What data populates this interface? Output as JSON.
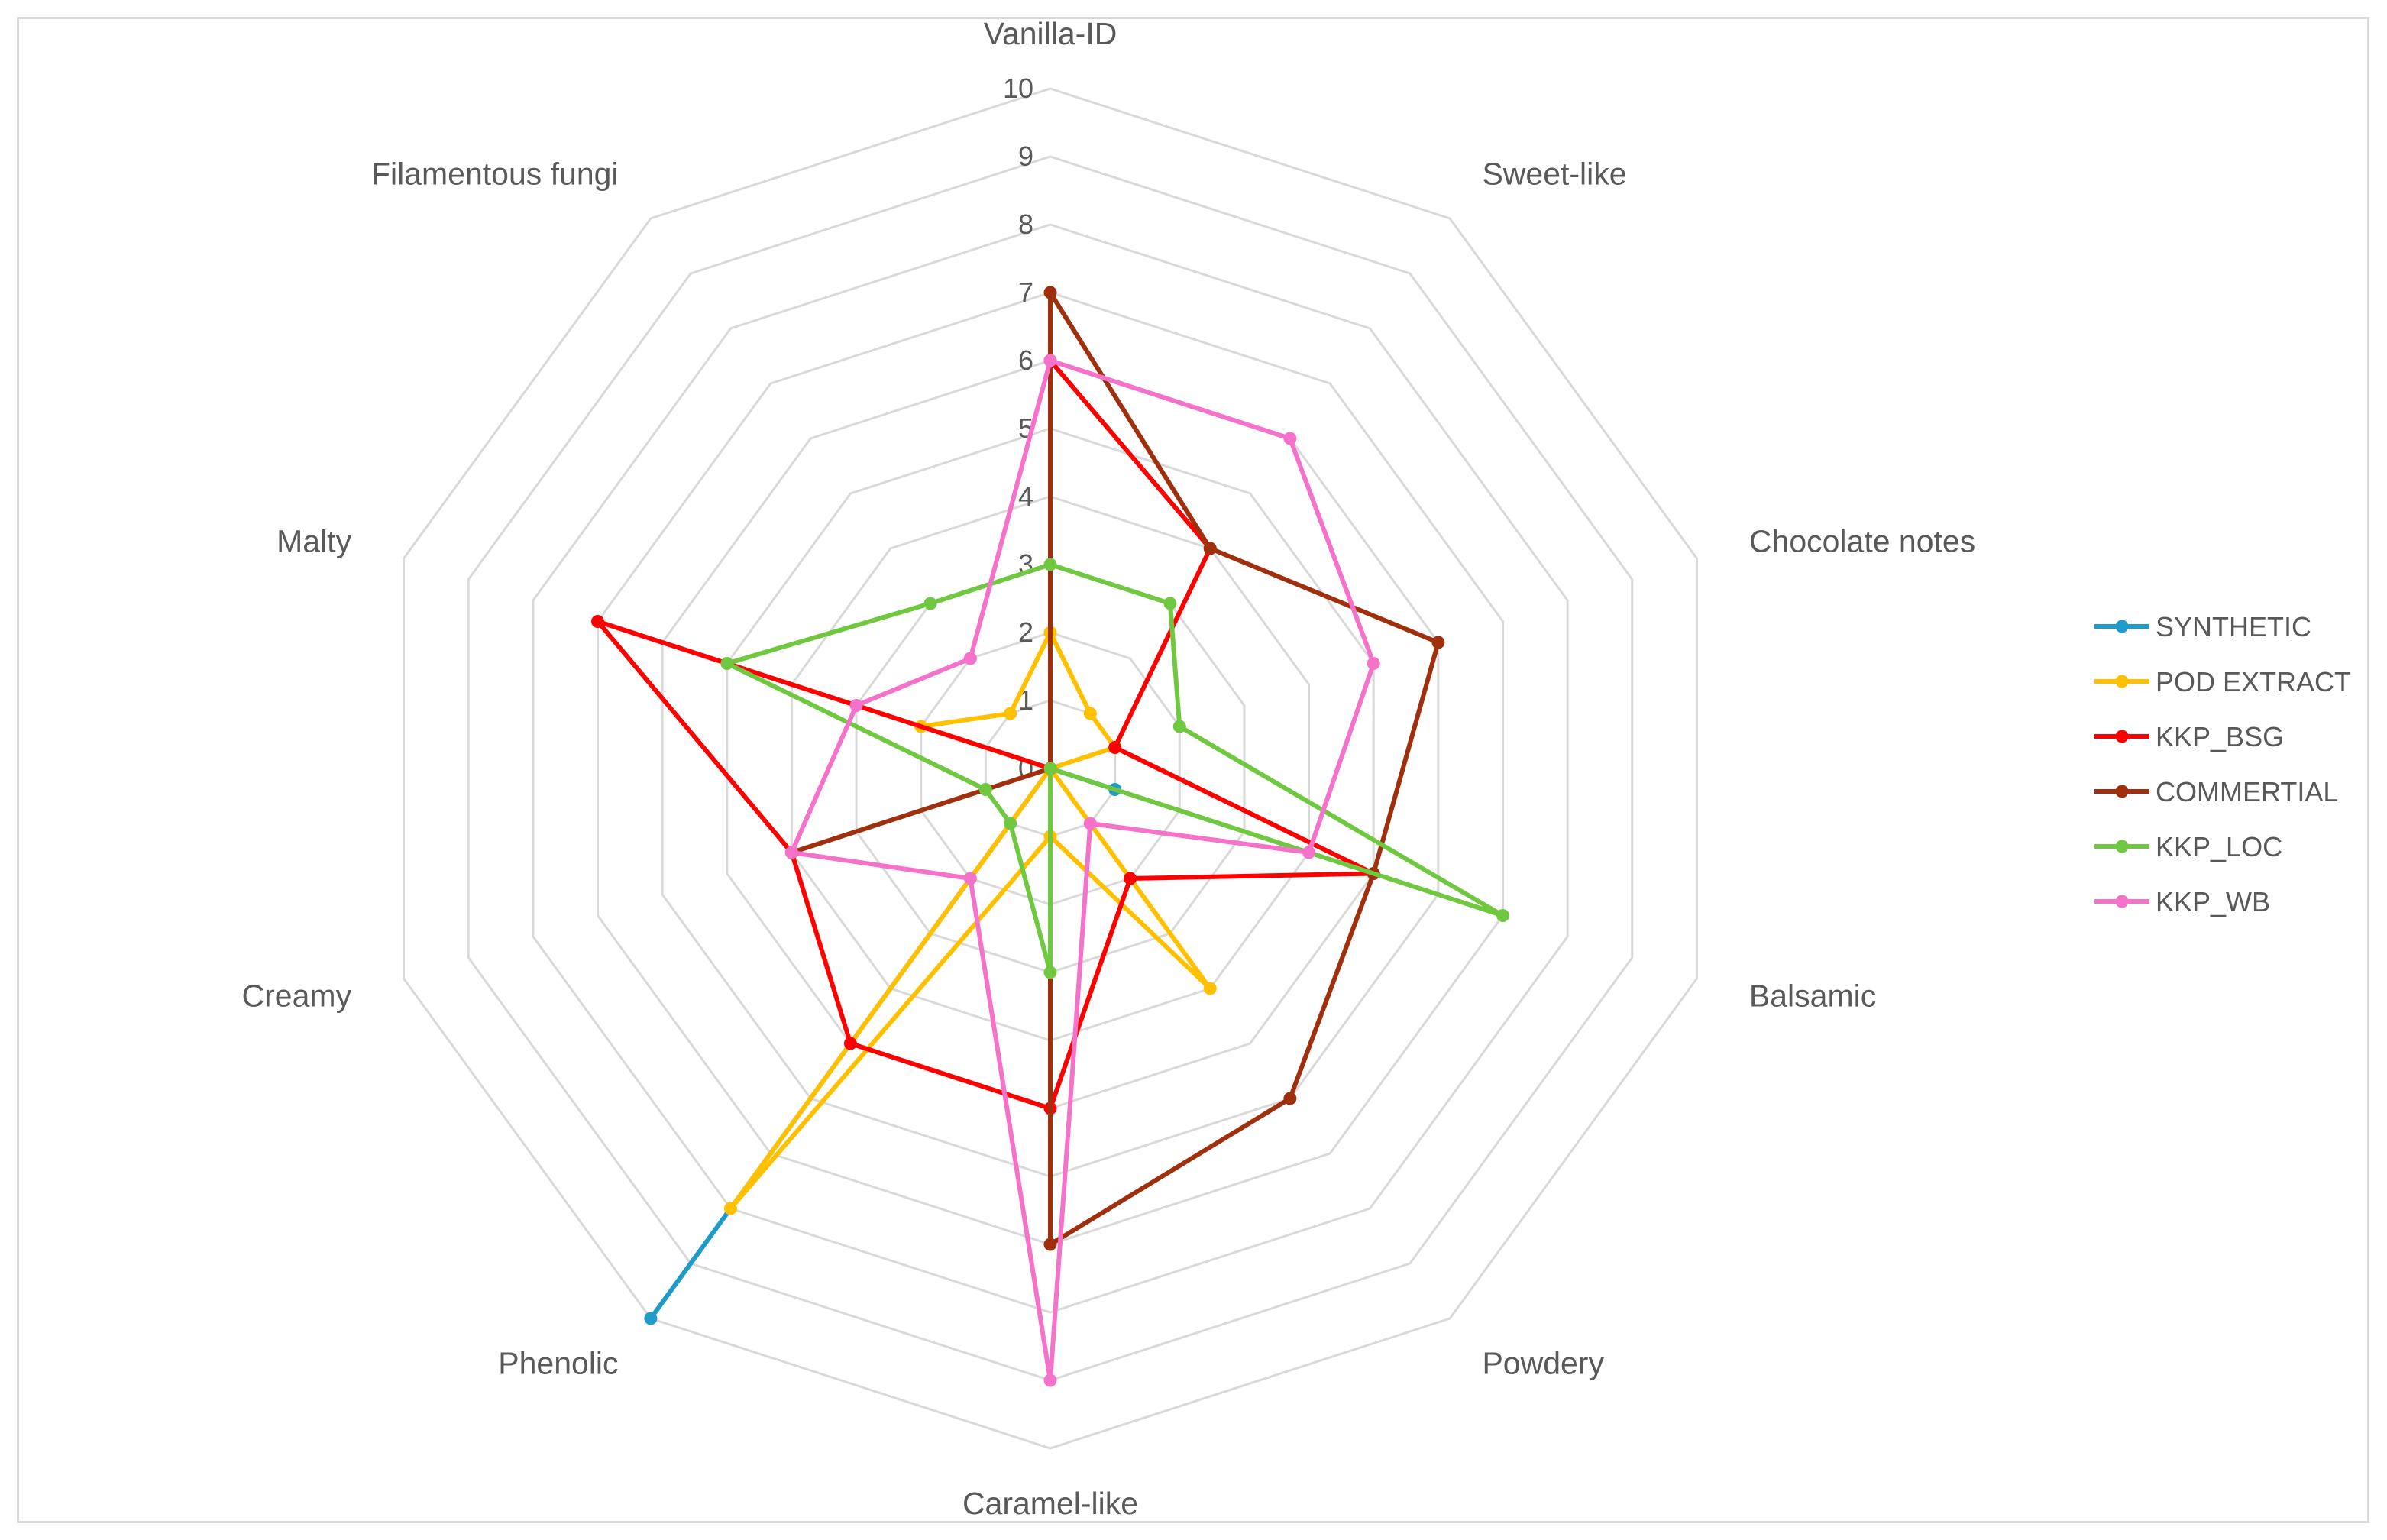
{
  "chart_data": {
    "type": "radar",
    "title": "",
    "axes": [
      "Vanilla-ID",
      "Sweet-like",
      "Chocolate notes",
      "Balsamic",
      "Powdery",
      "Caramel-like",
      "Phenolic",
      "Creamy",
      "Malty",
      "Filamentous fungi"
    ],
    "rlim": [
      0,
      10
    ],
    "ticks": [
      0,
      1,
      2,
      3,
      4,
      5,
      6,
      7,
      8,
      9,
      10
    ],
    "grid": true,
    "legend_position": "right",
    "series": [
      {
        "name": "SYNTHETIC",
        "color": "#1F9BC9",
        "values": [
          0,
          0,
          0,
          1,
          0,
          0,
          10,
          0,
          0,
          0
        ]
      },
      {
        "name": "POD EXTRACT",
        "color": "#FFC000",
        "values": [
          2,
          1,
          1,
          0,
          4,
          1,
          8,
          0,
          2,
          1
        ]
      },
      {
        "name": "KKP_BSG",
        "color": "#FF0000",
        "values": [
          6,
          4,
          1,
          5,
          2,
          5,
          5,
          4,
          7,
          0
        ]
      },
      {
        "name": "COMMERTIAL",
        "color": "#A0300D",
        "values": [
          7,
          4,
          6,
          5,
          6,
          7,
          0,
          4,
          0,
          0
        ]
      },
      {
        "name": "KKP_LOC",
        "color": "#70C840",
        "values": [
          3,
          3,
          2,
          7,
          0,
          3,
          1,
          1,
          5,
          3
        ]
      },
      {
        "name": "KKP_WB",
        "color": "#F472C9",
        "values": [
          6,
          6,
          5,
          4,
          1,
          9,
          2,
          4,
          3,
          2
        ]
      }
    ]
  }
}
